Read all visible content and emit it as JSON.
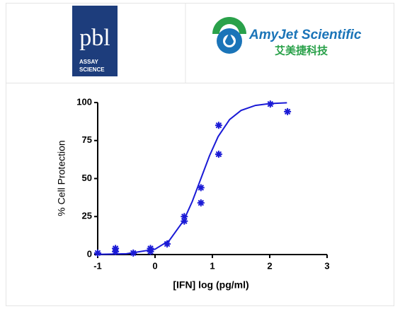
{
  "header": {
    "pbl_logo": {
      "mark": "pbl",
      "line1": "ASSAY",
      "line2": "SCIENCE"
    },
    "amyjet_logo": {
      "name": "AmyJet Scientific",
      "chinese": "艾美捷科技"
    }
  },
  "chart_data": {
    "type": "scatter",
    "x_label": "[IFN] log (pg/ml)",
    "y_label": "% Cell Protection",
    "xlim": [
      -1,
      3
    ],
    "xticks": [
      -1,
      0,
      1,
      2,
      3
    ],
    "ylim": [
      0,
      100
    ],
    "yticks": [
      0,
      25,
      50,
      75,
      100
    ],
    "series": [
      {
        "type": "scatter",
        "color": "#1a1ad6",
        "x": [
          -1,
          -0.69,
          -0.69,
          -0.38,
          -0.08,
          -0.08,
          0.21,
          0.51,
          0.51,
          0.8,
          0.8,
          1.11,
          1.11,
          2.01,
          2.31
        ],
        "values": [
          1,
          4,
          2,
          1,
          4,
          2,
          7,
          25,
          22,
          44,
          34,
          85,
          66,
          99,
          94
        ]
      },
      {
        "type": "line",
        "color": "#1a1ad6",
        "x": [
          -1,
          -0.5,
          0,
          0.25,
          0.5,
          0.65,
          0.8,
          0.95,
          1.1,
          1.3,
          1.5,
          1.75,
          2,
          2.3
        ],
        "values": [
          0.1,
          0.5,
          3.5,
          9.3,
          22.4,
          35,
          50,
          65,
          77.6,
          88.8,
          94.8,
          98.1,
          99.3,
          99.8
        ]
      }
    ]
  }
}
